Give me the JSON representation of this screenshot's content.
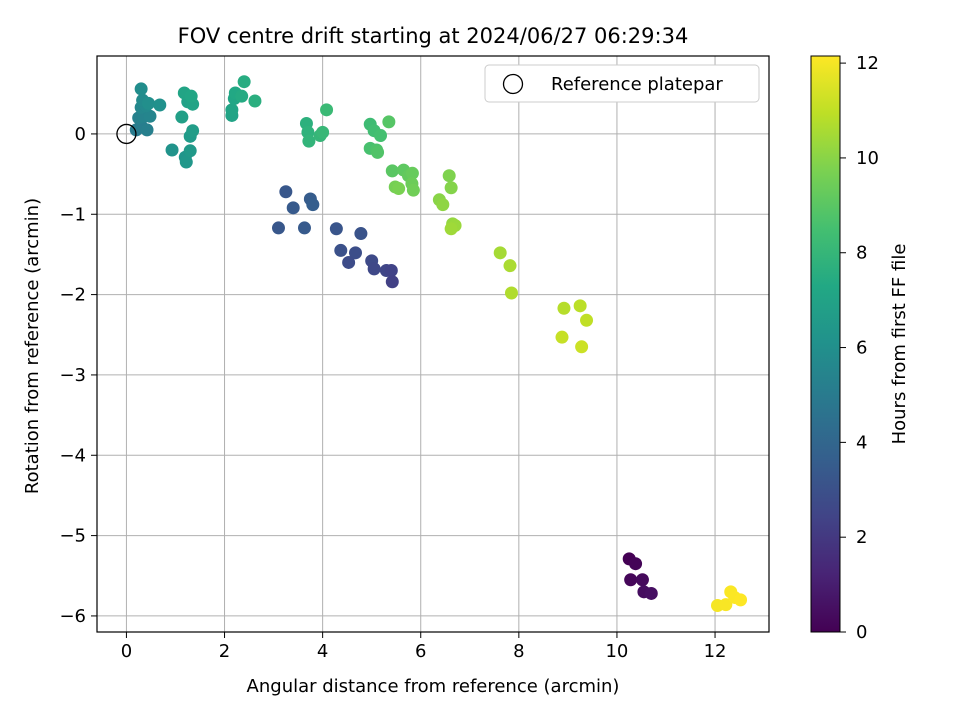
{
  "chart_data": {
    "type": "scatter",
    "title": "FOV centre drift starting at 2024/06/27 06:29:34",
    "xlabel": "Angular distance from reference (arcmin)",
    "ylabel": "Rotation from reference (arcmin)",
    "xlim": [
      -0.6,
      13.1
    ],
    "ylim": [
      -6.2,
      0.97
    ],
    "xticks": [
      0,
      2,
      4,
      6,
      8,
      10,
      12
    ],
    "yticks": [
      0,
      -1,
      -2,
      -3,
      -4,
      -5,
      -6
    ],
    "grid": true,
    "legend": {
      "position": "upper right",
      "entries": [
        "Reference platepar"
      ]
    },
    "reference": {
      "x": 0,
      "y": 0,
      "label": "Reference platepar"
    },
    "colorbar": {
      "label": "Hours from first FF file",
      "colormap": "viridis",
      "range": [
        0,
        12.15
      ],
      "ticks": [
        0,
        2,
        4,
        6,
        8,
        10,
        12
      ]
    },
    "points": [
      {
        "x": 10.25,
        "y": -5.29,
        "h": 0.0
      },
      {
        "x": 10.38,
        "y": -5.35,
        "h": 0.1
      },
      {
        "x": 10.28,
        "y": -5.55,
        "h": 0.2
      },
      {
        "x": 10.52,
        "y": -5.55,
        "h": 0.3
      },
      {
        "x": 10.55,
        "y": -5.7,
        "h": 0.4
      },
      {
        "x": 10.7,
        "y": -5.72,
        "h": 0.5
      },
      {
        "x": 3.25,
        "y": -0.72,
        "h": 3.3
      },
      {
        "x": 3.4,
        "y": -0.92,
        "h": 3.4
      },
      {
        "x": 3.75,
        "y": -0.81,
        "h": 3.5
      },
      {
        "x": 3.8,
        "y": -0.88,
        "h": 3.6
      },
      {
        "x": 3.1,
        "y": -1.17,
        "h": 3.3
      },
      {
        "x": 3.63,
        "y": -1.17,
        "h": 3.4
      },
      {
        "x": 4.28,
        "y": -1.18,
        "h": 3.2
      },
      {
        "x": 4.78,
        "y": -1.24,
        "h": 3.1
      },
      {
        "x": 4.37,
        "y": -1.45,
        "h": 3.0
      },
      {
        "x": 4.67,
        "y": -1.48,
        "h": 2.9
      },
      {
        "x": 4.53,
        "y": -1.6,
        "h": 2.8
      },
      {
        "x": 5.0,
        "y": -1.58,
        "h": 2.7
      },
      {
        "x": 5.05,
        "y": -1.68,
        "h": 2.6
      },
      {
        "x": 5.3,
        "y": -1.7,
        "h": 2.5
      },
      {
        "x": 5.4,
        "y": -1.7,
        "h": 2.4
      },
      {
        "x": 5.42,
        "y": -1.84,
        "h": 2.3
      },
      {
        "x": 0.2,
        "y": 0.05,
        "h": 5.0
      },
      {
        "x": 0.3,
        "y": 0.1,
        "h": 5.1
      },
      {
        "x": 0.42,
        "y": 0.05,
        "h": 5.2
      },
      {
        "x": 0.25,
        "y": 0.2,
        "h": 5.3
      },
      {
        "x": 0.35,
        "y": 0.22,
        "h": 5.4
      },
      {
        "x": 0.48,
        "y": 0.22,
        "h": 5.5
      },
      {
        "x": 0.3,
        "y": 0.33,
        "h": 5.6
      },
      {
        "x": 0.4,
        "y": 0.35,
        "h": 5.7
      },
      {
        "x": 0.33,
        "y": 0.42,
        "h": 5.8
      },
      {
        "x": 0.3,
        "y": 0.56,
        "h": 5.9
      },
      {
        "x": 0.45,
        "y": 0.38,
        "h": 6.0
      },
      {
        "x": 0.68,
        "y": 0.36,
        "h": 6.1
      },
      {
        "x": 0.93,
        "y": -0.2,
        "h": 6.2
      },
      {
        "x": 1.2,
        "y": -0.29,
        "h": 6.3
      },
      {
        "x": 1.22,
        "y": -0.35,
        "h": 6.4
      },
      {
        "x": 1.3,
        "y": -0.21,
        "h": 6.5
      },
      {
        "x": 1.3,
        "y": -0.03,
        "h": 6.6
      },
      {
        "x": 1.35,
        "y": 0.04,
        "h": 6.7
      },
      {
        "x": 1.13,
        "y": 0.21,
        "h": 6.8
      },
      {
        "x": 1.25,
        "y": 0.4,
        "h": 6.9
      },
      {
        "x": 1.35,
        "y": 0.37,
        "h": 7.0
      },
      {
        "x": 1.18,
        "y": 0.51,
        "h": 7.1
      },
      {
        "x": 1.32,
        "y": 0.47,
        "h": 7.2
      },
      {
        "x": 2.15,
        "y": 0.23,
        "h": 7.0
      },
      {
        "x": 2.15,
        "y": 0.3,
        "h": 7.1
      },
      {
        "x": 2.2,
        "y": 0.44,
        "h": 7.2
      },
      {
        "x": 2.22,
        "y": 0.51,
        "h": 7.3
      },
      {
        "x": 2.35,
        "y": 0.47,
        "h": 7.4
      },
      {
        "x": 2.4,
        "y": 0.65,
        "h": 7.5
      },
      {
        "x": 2.62,
        "y": 0.41,
        "h": 7.6
      },
      {
        "x": 3.67,
        "y": 0.13,
        "h": 7.7
      },
      {
        "x": 3.7,
        "y": 0.02,
        "h": 7.8
      },
      {
        "x": 3.72,
        "y": -0.09,
        "h": 7.9
      },
      {
        "x": 3.95,
        "y": -0.02,
        "h": 8.0
      },
      {
        "x": 4.0,
        "y": 0.02,
        "h": 8.1
      },
      {
        "x": 4.08,
        "y": 0.3,
        "h": 8.2
      },
      {
        "x": 4.97,
        "y": 0.12,
        "h": 8.3
      },
      {
        "x": 5.05,
        "y": 0.04,
        "h": 8.4
      },
      {
        "x": 5.18,
        "y": -0.02,
        "h": 8.5
      },
      {
        "x": 4.97,
        "y": -0.18,
        "h": 8.6
      },
      {
        "x": 5.1,
        "y": -0.2,
        "h": 8.7
      },
      {
        "x": 5.12,
        "y": -0.23,
        "h": 8.8
      },
      {
        "x": 5.35,
        "y": 0.15,
        "h": 8.9
      },
      {
        "x": 5.42,
        "y": -0.46,
        "h": 9.0
      },
      {
        "x": 5.65,
        "y": -0.45,
        "h": 9.1
      },
      {
        "x": 5.75,
        "y": -0.52,
        "h": 9.2
      },
      {
        "x": 5.83,
        "y": -0.49,
        "h": 9.3
      },
      {
        "x": 5.82,
        "y": -0.62,
        "h": 9.4
      },
      {
        "x": 5.85,
        "y": -0.7,
        "h": 9.5
      },
      {
        "x": 5.48,
        "y": -0.66,
        "h": 9.6
      },
      {
        "x": 5.55,
        "y": -0.68,
        "h": 9.7
      },
      {
        "x": 6.58,
        "y": -0.52,
        "h": 9.8
      },
      {
        "x": 6.62,
        "y": -0.67,
        "h": 9.9
      },
      {
        "x": 6.38,
        "y": -0.82,
        "h": 10.0
      },
      {
        "x": 6.45,
        "y": -0.88,
        "h": 10.1
      },
      {
        "x": 6.65,
        "y": -1.12,
        "h": 10.2
      },
      {
        "x": 6.7,
        "y": -1.14,
        "h": 10.3
      },
      {
        "x": 6.62,
        "y": -1.18,
        "h": 10.4
      },
      {
        "x": 7.62,
        "y": -1.48,
        "h": 10.5
      },
      {
        "x": 7.82,
        "y": -1.64,
        "h": 10.6
      },
      {
        "x": 7.85,
        "y": -1.98,
        "h": 10.7
      },
      {
        "x": 8.92,
        "y": -2.17,
        "h": 10.8
      },
      {
        "x": 9.25,
        "y": -2.14,
        "h": 10.9
      },
      {
        "x": 9.38,
        "y": -2.32,
        "h": 11.0
      },
      {
        "x": 8.88,
        "y": -2.53,
        "h": 11.1
      },
      {
        "x": 9.28,
        "y": -2.65,
        "h": 11.2
      },
      {
        "x": 12.05,
        "y": -5.87,
        "h": 12.0
      },
      {
        "x": 12.22,
        "y": -5.86,
        "h": 12.05
      },
      {
        "x": 12.32,
        "y": -5.7,
        "h": 12.1
      },
      {
        "x": 12.4,
        "y": -5.77,
        "h": 12.12
      },
      {
        "x": 12.52,
        "y": -5.8,
        "h": 12.15
      }
    ]
  }
}
